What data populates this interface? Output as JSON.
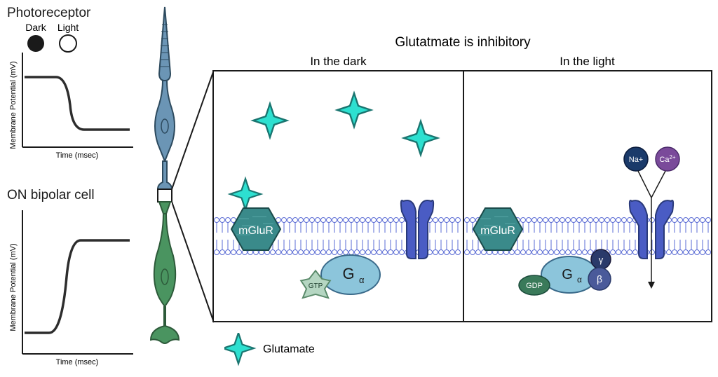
{
  "photoreceptor": {
    "title": "Photoreceptor",
    "dark_label": "Dark",
    "light_label": "Light",
    "y_axis": "Membrane Potential (mV)",
    "x_axis": "Time (msec)",
    "graph": {
      "stroke": "#2d2d2d",
      "stroke_width": 3,
      "axis_stroke": "#1a1a1a",
      "axis_width": 2
    }
  },
  "bipolar": {
    "title": "ON bipolar cell",
    "y_axis": "Membrane Potential (mV)",
    "x_axis": "Time (msec)",
    "graph": {
      "stroke": "#2d2d2d",
      "stroke_width": 3,
      "axis_stroke": "#1a1a1a",
      "axis_width": 2
    }
  },
  "main_panel": {
    "title": "Glutatmate is inhibitory",
    "dark_label": "In the dark",
    "light_label": "In the light",
    "border_color": "#1a1a1a",
    "border_width": 2,
    "background": "#ffffff"
  },
  "legend": {
    "glutamate": "Glutamate"
  },
  "colors": {
    "photoreceptor_cell": "#6b95b5",
    "photoreceptor_stroke": "#2d4a5e",
    "bipolar_cell": "#4a9460",
    "bipolar_stroke": "#2d5a3a",
    "membrane_lipid": "#5a6bd4",
    "membrane_bg": "#fff",
    "glutamate_fill": "#2de0d0",
    "glutamate_stroke": "#1a7570",
    "mglur_fill": "#3a8a8a",
    "mglur_stroke": "#1a4a4a",
    "mglur_text": "#ffffff",
    "channel_fill": "#4a5cc4",
    "channel_stroke": "#2a3a7a",
    "g_alpha_fill": "#8cc5db",
    "g_alpha_stroke": "#3a6a8a",
    "gtp_fill": "#b5d6c2",
    "gtp_stroke": "#5a8a6a",
    "gdp_fill": "#3a7a5a",
    "gdp_stroke": "#1a4a3a",
    "gamma_fill": "#2a3a6a",
    "gamma_stroke": "#1a1a3a",
    "beta_fill": "#4a5a9a",
    "beta_stroke": "#2a3a6a",
    "na_fill": "#1a3a6a",
    "na_stroke": "#0a1a3a",
    "ca_fill": "#7a4a9a",
    "ca_stroke": "#4a2a6a",
    "dark_circle": "#1a1a1a",
    "light_circle_fill": "#ffffff",
    "light_circle_stroke": "#1a1a1a"
  },
  "labels": {
    "mglur": "mGluR",
    "g_alpha": "G",
    "g_alpha_sub": "α",
    "gtp": "GTP",
    "gdp": "GDP",
    "gamma": "γ",
    "beta": "β",
    "na": "Na+",
    "ca": "Ca",
    "ca_sup": "2+"
  }
}
